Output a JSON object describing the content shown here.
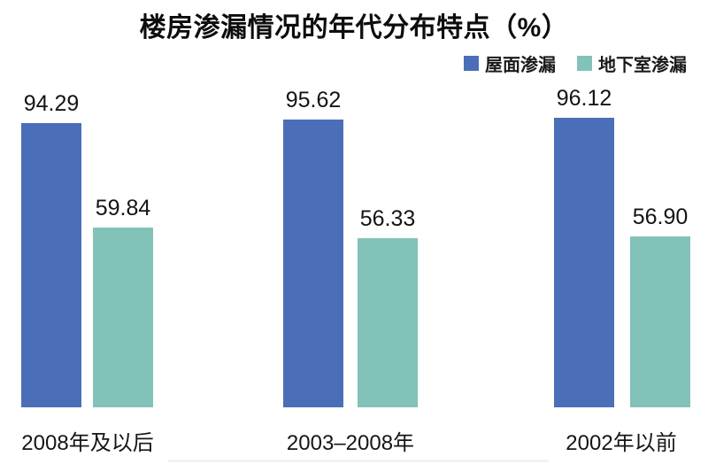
{
  "chart_data": {
    "type": "bar",
    "title": "楼房渗漏情况的年代分布特点（%）",
    "unit": "%",
    "categories": [
      "2008年及以后",
      "2003–2008年",
      "2002年以前"
    ],
    "series": [
      {
        "name": "屋面渗漏",
        "color": "#4a6fb8",
        "values": [
          94.29,
          95.62,
          96.12
        ],
        "value_labels": [
          "94.29",
          "95.62",
          "96.12"
        ]
      },
      {
        "name": "地下室渗漏",
        "color": "#83c2b8",
        "values": [
          59.84,
          56.33,
          56.9
        ],
        "value_labels": [
          "59.84",
          "56.33",
          "56.90"
        ]
      }
    ],
    "ylim": [
      0,
      100
    ],
    "grid": false,
    "axes_visible": false,
    "legend_position": "top-right",
    "value_labels_shown": true
  }
}
